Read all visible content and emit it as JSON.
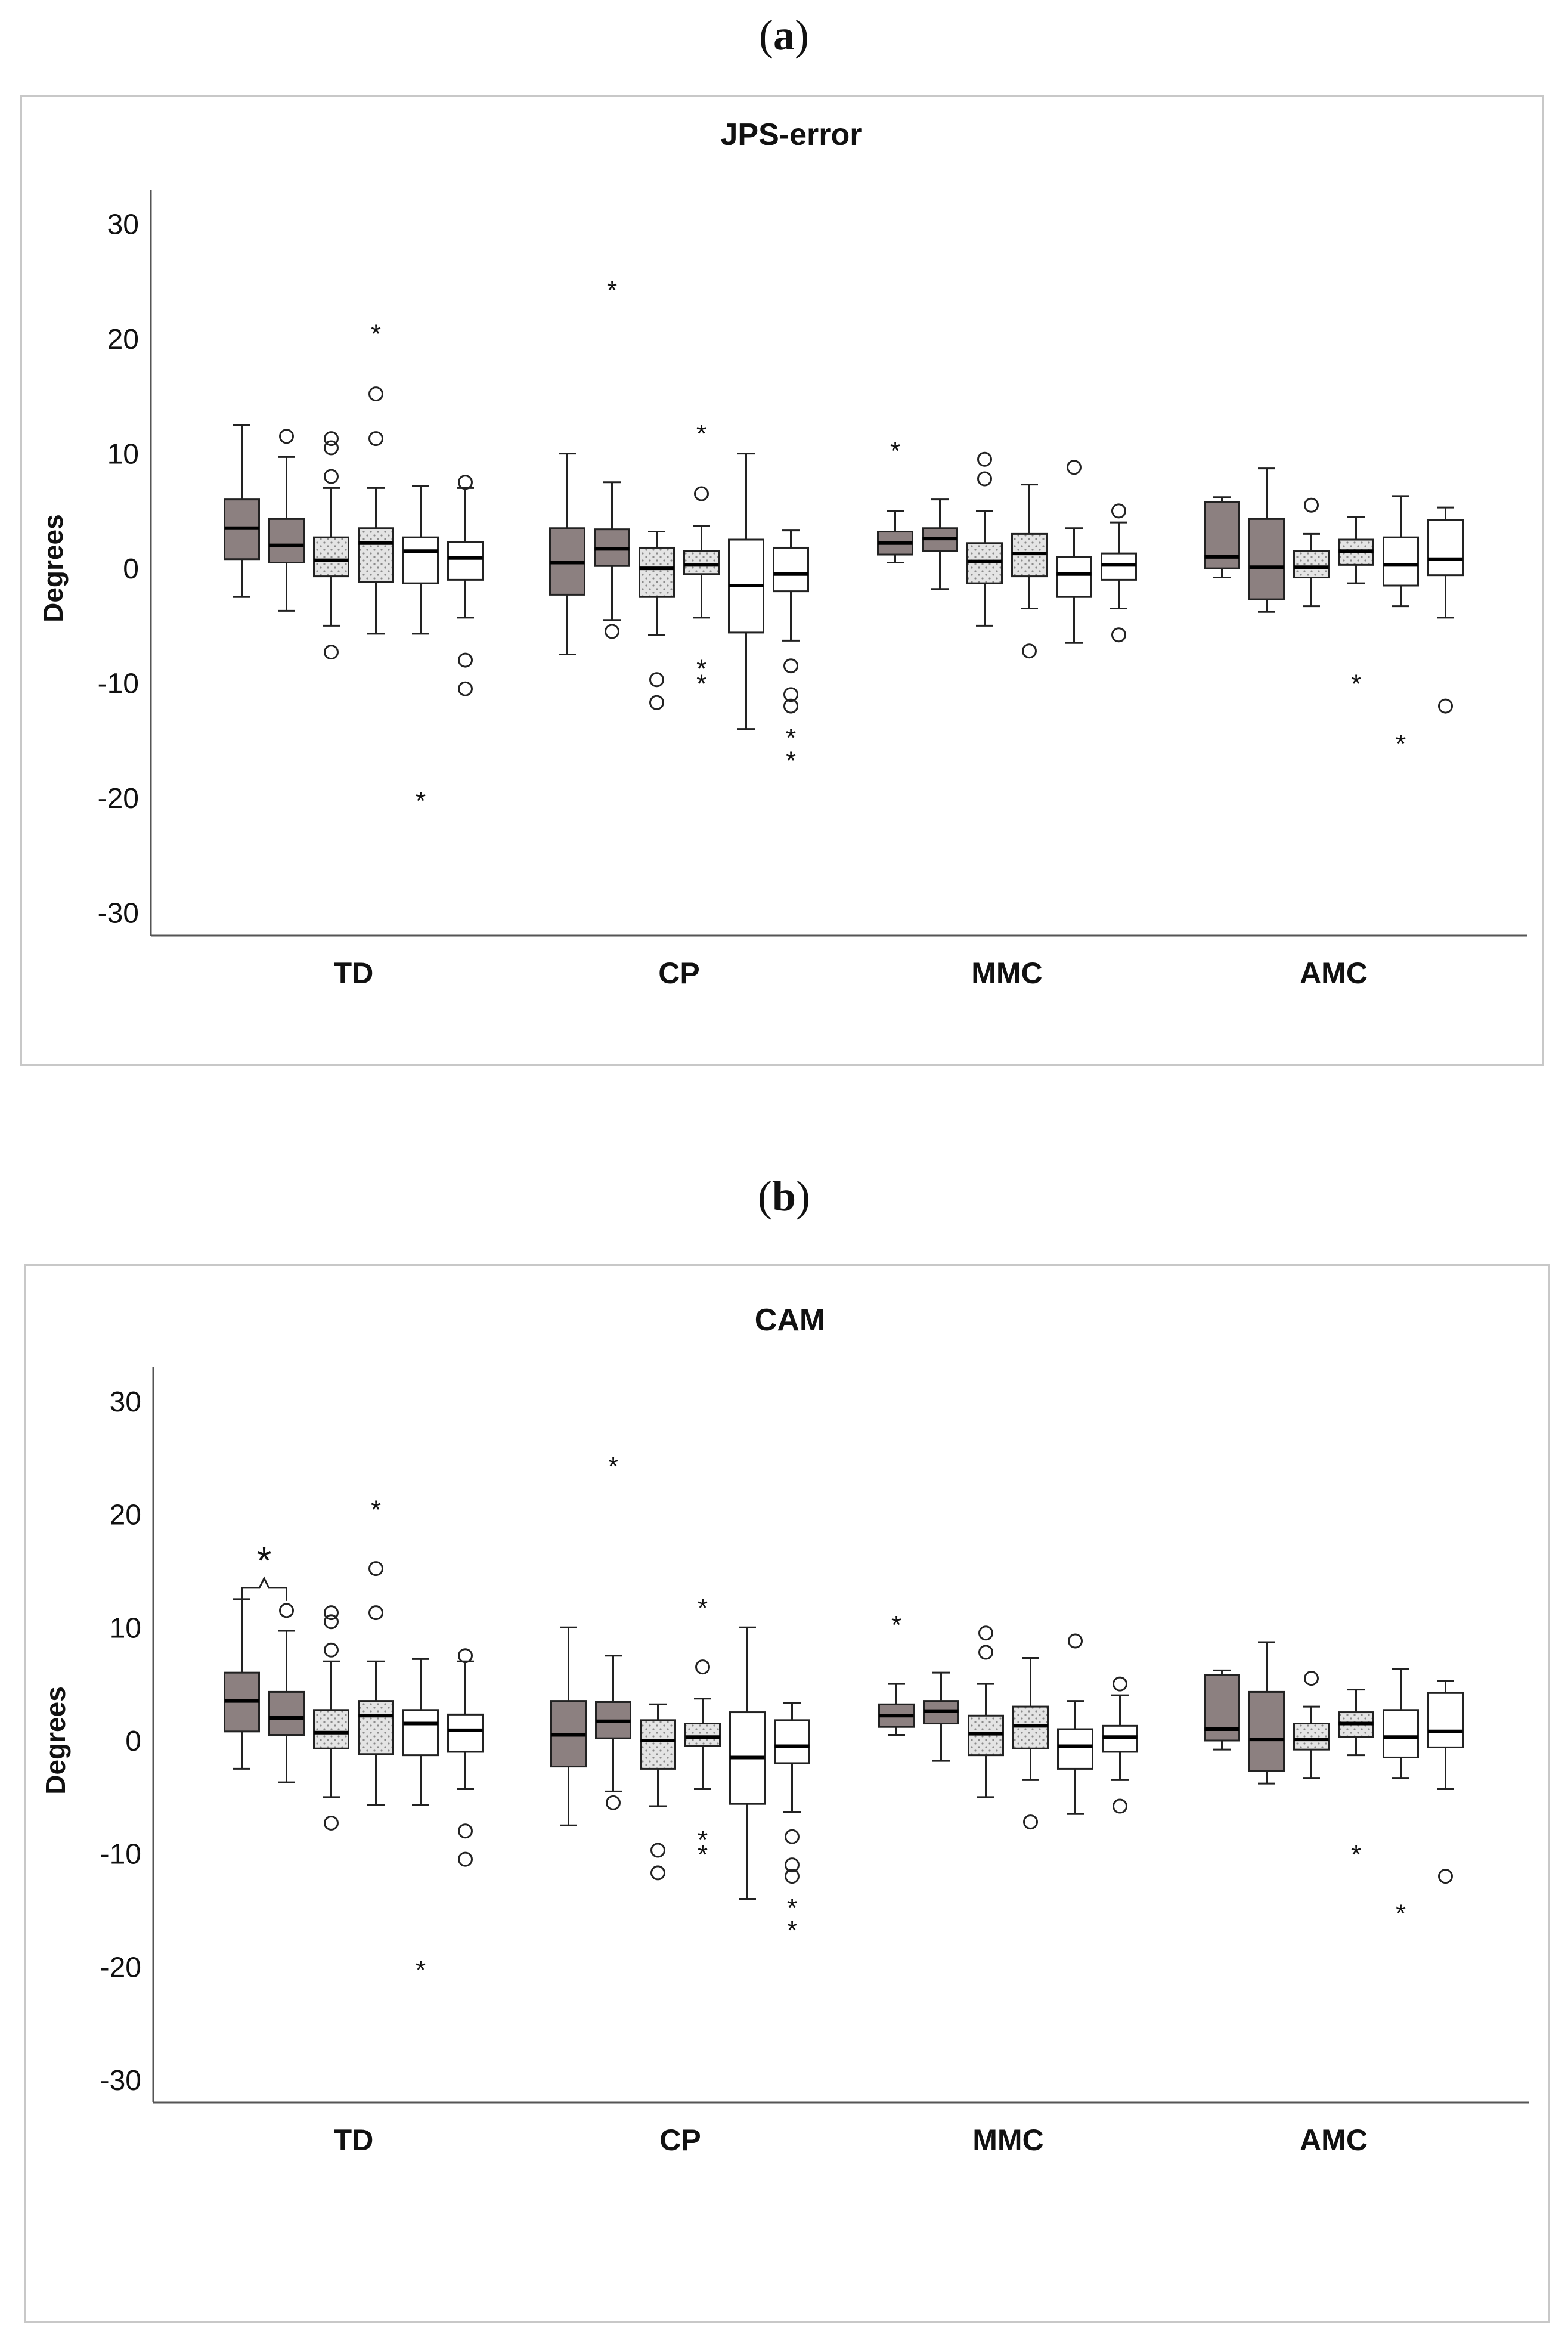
{
  "panels": [
    {
      "label_open": "(",
      "label_letter": "a",
      "label_close": ")"
    },
    {
      "label_open": "(",
      "label_letter": "b",
      "label_close": ")"
    }
  ],
  "colors": {
    "grey_fill": "#8c8080",
    "dotted_fill": "#e4e4e4",
    "white_fill": "#ffffff",
    "stroke": "#222222"
  },
  "chart_data": [
    {
      "type": "box",
      "title": "JPS-error",
      "ylabel": "Degrees",
      "xlabel": "",
      "ylim": [
        -32,
        33
      ],
      "yticks": [
        "30",
        "20",
        "10",
        "0",
        "-10",
        "-20",
        "-30"
      ],
      "groups": [
        "TD",
        "CP",
        "MMC",
        "AMC"
      ],
      "box_styles": [
        "grey",
        "grey",
        "dotted",
        "dotted",
        "white",
        "white"
      ],
      "boxes": [
        [
          {
            "min": -2.5,
            "q1": 0.8,
            "median": 3.5,
            "q3": 6.0,
            "max": 12.5,
            "outliers": [],
            "extremes": []
          },
          {
            "min": -3.7,
            "q1": 0.5,
            "median": 2.0,
            "q3": 4.3,
            "max": 9.7,
            "outliers": [
              11.5
            ],
            "extremes": []
          },
          {
            "min": -5.0,
            "q1": -0.7,
            "median": 0.7,
            "q3": 2.7,
            "max": 7.0,
            "outliers": [
              11.3,
              10.5,
              8.0,
              -7.3
            ],
            "extremes": []
          },
          {
            "min": -5.7,
            "q1": -1.2,
            "median": 2.2,
            "q3": 3.5,
            "max": 7.0,
            "outliers": [
              15.2,
              11.3
            ],
            "extremes": [
              20.7
            ]
          },
          {
            "min": -5.7,
            "q1": -1.3,
            "median": 1.5,
            "q3": 2.7,
            "max": 7.2,
            "outliers": [],
            "extremes": [
              -20.0
            ]
          },
          {
            "min": -4.3,
            "q1": -1.0,
            "median": 0.9,
            "q3": 2.3,
            "max": 7.0,
            "outliers": [
              7.5,
              -8.0,
              -10.5
            ],
            "extremes": []
          }
        ],
        [
          {
            "min": -7.5,
            "q1": -2.3,
            "median": 0.5,
            "q3": 3.5,
            "max": 10.0,
            "outliers": [],
            "extremes": []
          },
          {
            "min": -4.5,
            "q1": 0.2,
            "median": 1.7,
            "q3": 3.4,
            "max": 7.5,
            "outliers": [
              -5.5
            ],
            "extremes": [
              24.5
            ]
          },
          {
            "min": -5.8,
            "q1": -2.5,
            "median": 0.0,
            "q3": 1.8,
            "max": 3.2,
            "outliers": [
              -9.7,
              -11.7
            ],
            "extremes": []
          },
          {
            "min": -4.3,
            "q1": -0.5,
            "median": 0.3,
            "q3": 1.5,
            "max": 3.7,
            "outliers": [
              6.5
            ],
            "extremes": [
              12.0,
              -8.5,
              -9.8
            ]
          },
          {
            "min": -14.0,
            "q1": -5.6,
            "median": -1.5,
            "q3": 2.5,
            "max": 10.0,
            "outliers": [],
            "extremes": []
          },
          {
            "min": -6.3,
            "q1": -2.0,
            "median": -0.5,
            "q3": 1.8,
            "max": 3.3,
            "outliers": [
              -8.5,
              -11.0,
              -12.0
            ],
            "extremes": [
              -14.5,
              -16.5
            ]
          }
        ],
        [
          {
            "min": 0.5,
            "q1": 1.2,
            "median": 2.2,
            "q3": 3.2,
            "max": 5.0,
            "outliers": [],
            "extremes": [
              10.5
            ]
          },
          {
            "min": -1.8,
            "q1": 1.5,
            "median": 2.6,
            "q3": 3.5,
            "max": 6.0,
            "outliers": [],
            "extremes": []
          },
          {
            "min": -5.0,
            "q1": -1.3,
            "median": 0.6,
            "q3": 2.2,
            "max": 5.0,
            "outliers": [
              9.5,
              7.8
            ],
            "extremes": []
          },
          {
            "min": -3.5,
            "q1": -0.7,
            "median": 1.3,
            "q3": 3.0,
            "max": 7.3,
            "outliers": [
              -7.2
            ],
            "extremes": []
          },
          {
            "min": -6.5,
            "q1": -2.5,
            "median": -0.5,
            "q3": 1.0,
            "max": 3.5,
            "outliers": [
              8.8
            ],
            "extremes": []
          },
          {
            "min": -3.5,
            "q1": -1.0,
            "median": 0.3,
            "q3": 1.3,
            "max": 4.0,
            "outliers": [
              5.0,
              -5.8
            ],
            "extremes": []
          }
        ],
        [
          {
            "min": -0.8,
            "q1": 0.0,
            "median": 1.0,
            "q3": 5.8,
            "max": 6.2,
            "outliers": [],
            "extremes": []
          },
          {
            "min": -3.8,
            "q1": -2.7,
            "median": 0.1,
            "q3": 4.3,
            "max": 8.7,
            "outliers": [],
            "extremes": []
          },
          {
            "min": -3.3,
            "q1": -0.8,
            "median": 0.1,
            "q3": 1.5,
            "max": 3.0,
            "outliers": [
              5.5
            ],
            "extremes": []
          },
          {
            "min": -1.3,
            "q1": 0.3,
            "median": 1.5,
            "q3": 2.5,
            "max": 4.5,
            "outliers": [],
            "extremes": [
              -9.8
            ]
          },
          {
            "min": -3.3,
            "q1": -1.5,
            "median": 0.3,
            "q3": 2.7,
            "max": 6.3,
            "outliers": [],
            "extremes": [
              -15.0
            ]
          },
          {
            "min": -4.3,
            "q1": -0.6,
            "median": 0.8,
            "q3": 4.2,
            "max": 5.3,
            "outliers": [
              -12.0
            ],
            "extremes": []
          }
        ]
      ],
      "annotations": []
    },
    {
      "type": "box",
      "title": "CAM",
      "ylabel": "Degrees",
      "xlabel": "",
      "ylim": [
        -32,
        33
      ],
      "yticks": [
        "30",
        "20",
        "10",
        "0",
        "-10",
        "-20",
        "-30"
      ],
      "groups": [
        "TD",
        "CP",
        "MMC",
        "AMC"
      ],
      "box_styles": [
        "grey",
        "grey",
        "dotted",
        "dotted",
        "white",
        "white"
      ],
      "boxes": [
        [
          {
            "min": -2.5,
            "q1": 0.8,
            "median": 3.5,
            "q3": 6.0,
            "max": 12.5,
            "outliers": [],
            "extremes": []
          },
          {
            "min": -3.7,
            "q1": 0.5,
            "median": 2.0,
            "q3": 4.3,
            "max": 9.7,
            "outliers": [
              11.5
            ],
            "extremes": []
          },
          {
            "min": -5.0,
            "q1": -0.7,
            "median": 0.7,
            "q3": 2.7,
            "max": 7.0,
            "outliers": [
              11.3,
              10.5,
              8.0,
              -7.3
            ],
            "extremes": []
          },
          {
            "min": -5.7,
            "q1": -1.2,
            "median": 2.2,
            "q3": 3.5,
            "max": 7.0,
            "outliers": [
              15.2,
              11.3
            ],
            "extremes": [
              20.7
            ]
          },
          {
            "min": -5.7,
            "q1": -1.3,
            "median": 1.5,
            "q3": 2.7,
            "max": 7.2,
            "outliers": [],
            "extremes": [
              -20.0
            ]
          },
          {
            "min": -4.3,
            "q1": -1.0,
            "median": 0.9,
            "q3": 2.3,
            "max": 7.0,
            "outliers": [
              7.5,
              -8.0,
              -10.5
            ],
            "extremes": []
          }
        ],
        [
          {
            "min": -7.5,
            "q1": -2.3,
            "median": 0.5,
            "q3": 3.5,
            "max": 10.0,
            "outliers": [],
            "extremes": []
          },
          {
            "min": -4.5,
            "q1": 0.2,
            "median": 1.7,
            "q3": 3.4,
            "max": 7.5,
            "outliers": [
              -5.5
            ],
            "extremes": [
              24.5
            ]
          },
          {
            "min": -5.8,
            "q1": -2.5,
            "median": 0.0,
            "q3": 1.8,
            "max": 3.2,
            "outliers": [
              -9.7,
              -11.7
            ],
            "extremes": []
          },
          {
            "min": -4.3,
            "q1": -0.5,
            "median": 0.3,
            "q3": 1.5,
            "max": 3.7,
            "outliers": [
              6.5
            ],
            "extremes": [
              12.0,
              -8.5,
              -9.8
            ]
          },
          {
            "min": -14.0,
            "q1": -5.6,
            "median": -1.5,
            "q3": 2.5,
            "max": 10.0,
            "outliers": [],
            "extremes": []
          },
          {
            "min": -6.3,
            "q1": -2.0,
            "median": -0.5,
            "q3": 1.8,
            "max": 3.3,
            "outliers": [
              -8.5,
              -11.0,
              -12.0
            ],
            "extremes": [
              -14.5,
              -16.5
            ]
          }
        ],
        [
          {
            "min": 0.5,
            "q1": 1.2,
            "median": 2.2,
            "q3": 3.2,
            "max": 5.0,
            "outliers": [],
            "extremes": [
              10.5
            ]
          },
          {
            "min": -1.8,
            "q1": 1.5,
            "median": 2.6,
            "q3": 3.5,
            "max": 6.0,
            "outliers": [],
            "extremes": []
          },
          {
            "min": -5.0,
            "q1": -1.3,
            "median": 0.6,
            "q3": 2.2,
            "max": 5.0,
            "outliers": [
              9.5,
              7.8
            ],
            "extremes": []
          },
          {
            "min": -3.5,
            "q1": -0.7,
            "median": 1.3,
            "q3": 3.0,
            "max": 7.3,
            "outliers": [
              -7.2
            ],
            "extremes": []
          },
          {
            "min": -6.5,
            "q1": -2.5,
            "median": -0.5,
            "q3": 1.0,
            "max": 3.5,
            "outliers": [
              8.8
            ],
            "extremes": []
          },
          {
            "min": -3.5,
            "q1": -1.0,
            "median": 0.3,
            "q3": 1.3,
            "max": 4.0,
            "outliers": [
              5.0,
              -5.8
            ],
            "extremes": []
          }
        ],
        [
          {
            "min": -0.8,
            "q1": 0.0,
            "median": 1.0,
            "q3": 5.8,
            "max": 6.2,
            "outliers": [],
            "extremes": []
          },
          {
            "min": -3.8,
            "q1": -2.7,
            "median": 0.1,
            "q3": 4.3,
            "max": 8.7,
            "outliers": [],
            "extremes": []
          },
          {
            "min": -3.3,
            "q1": -0.8,
            "median": 0.1,
            "q3": 1.5,
            "max": 3.0,
            "outliers": [
              5.5
            ],
            "extremes": []
          },
          {
            "min": -1.3,
            "q1": 0.3,
            "median": 1.5,
            "q3": 2.5,
            "max": 4.5,
            "outliers": [],
            "extremes": [
              -9.8
            ]
          },
          {
            "min": -3.3,
            "q1": -1.5,
            "median": 0.3,
            "q3": 2.7,
            "max": 6.3,
            "outliers": [],
            "extremes": [
              -15.0
            ]
          },
          {
            "min": -4.3,
            "q1": -0.6,
            "median": 0.8,
            "q3": 4.2,
            "max": 5.3,
            "outliers": [
              -12.0
            ],
            "extremes": []
          }
        ]
      ],
      "annotations": [
        {
          "type": "significance-bracket",
          "group": 0,
          "from_box": 0,
          "to_box": 1,
          "label": "*"
        }
      ]
    }
  ]
}
